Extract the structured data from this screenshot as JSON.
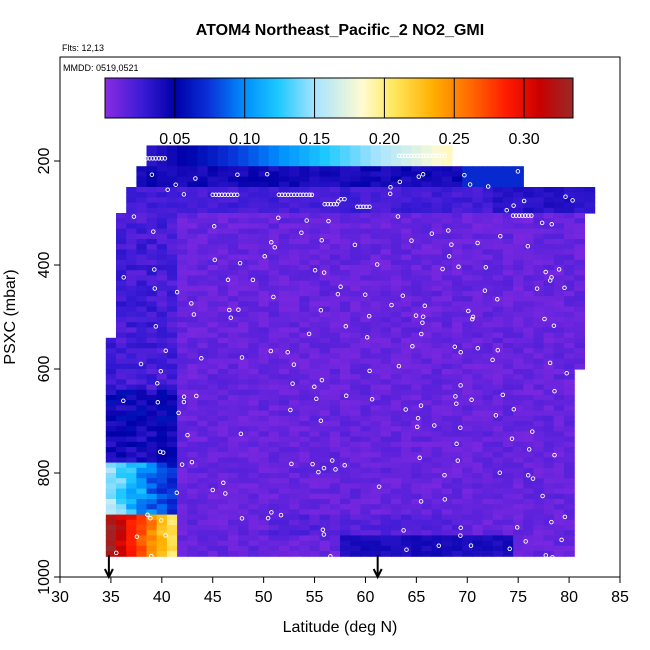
{
  "chart_data": {
    "type": "heatmap",
    "title": "ATOM4 Northeast_Pacific_2 NO2_GMI",
    "flights_note": "Flts: 12,13",
    "dates_note": "MMDD: 0519,0521",
    "xlabel": "Latitude (deg N)",
    "ylabel": "PSXC (mbar)",
    "xlim": [
      30,
      85
    ],
    "ylim": [
      1000,
      0
    ],
    "x_ticks": [
      "30",
      "35",
      "40",
      "45",
      "50",
      "55",
      "60",
      "65",
      "70",
      "75",
      "80",
      "85"
    ],
    "y_ticks": [
      "200",
      "400",
      "600",
      "800",
      "1000"
    ],
    "colorbar": {
      "range": [
        0,
        0.335
      ],
      "ticks": [
        "0.05",
        "0.10",
        "0.15",
        "0.20",
        "0.25",
        "0.30"
      ]
    },
    "arrow_markers_lat": [
      34.8,
      61.2
    ],
    "field_regions": [
      {
        "lat": [
          38.5,
          68.5
        ],
        "p": [
          170,
          210
        ],
        "value": 0.12,
        "note": "top layer, ramps 0.03 at south to 0.18 at north"
      },
      {
        "lat": [
          37.5,
          75
        ],
        "p": [
          210,
          255
        ],
        "value": 0.04
      },
      {
        "lat": [
          37,
          82
        ],
        "p": [
          255,
          305
        ],
        "value": 0.025
      },
      {
        "lat": [
          36,
          81.5
        ],
        "p": [
          305,
          550
        ],
        "value": 0.012
      },
      {
        "lat": [
          34.5,
          80.5
        ],
        "p": [
          550,
          750
        ],
        "value": 0.01
      },
      {
        "lat": [
          34.5,
          41.5
        ],
        "p": [
          640,
          780
        ],
        "value": 0.03
      },
      {
        "lat": [
          34.3,
          41.5
        ],
        "p": [
          780,
          880
        ],
        "value": 0.12,
        "note": "south boundary layer"
      },
      {
        "lat": [
          34.3,
          41.5
        ],
        "p": [
          880,
          960
        ],
        "value": 0.26,
        "note": "polluted surface, max 0.33"
      },
      {
        "lat": [
          41.5,
          80
        ],
        "p": [
          780,
          960
        ],
        "value": 0.01
      },
      {
        "lat": [
          57,
          75
        ],
        "p": [
          920,
          960
        ],
        "value": 0.04
      }
    ]
  }
}
